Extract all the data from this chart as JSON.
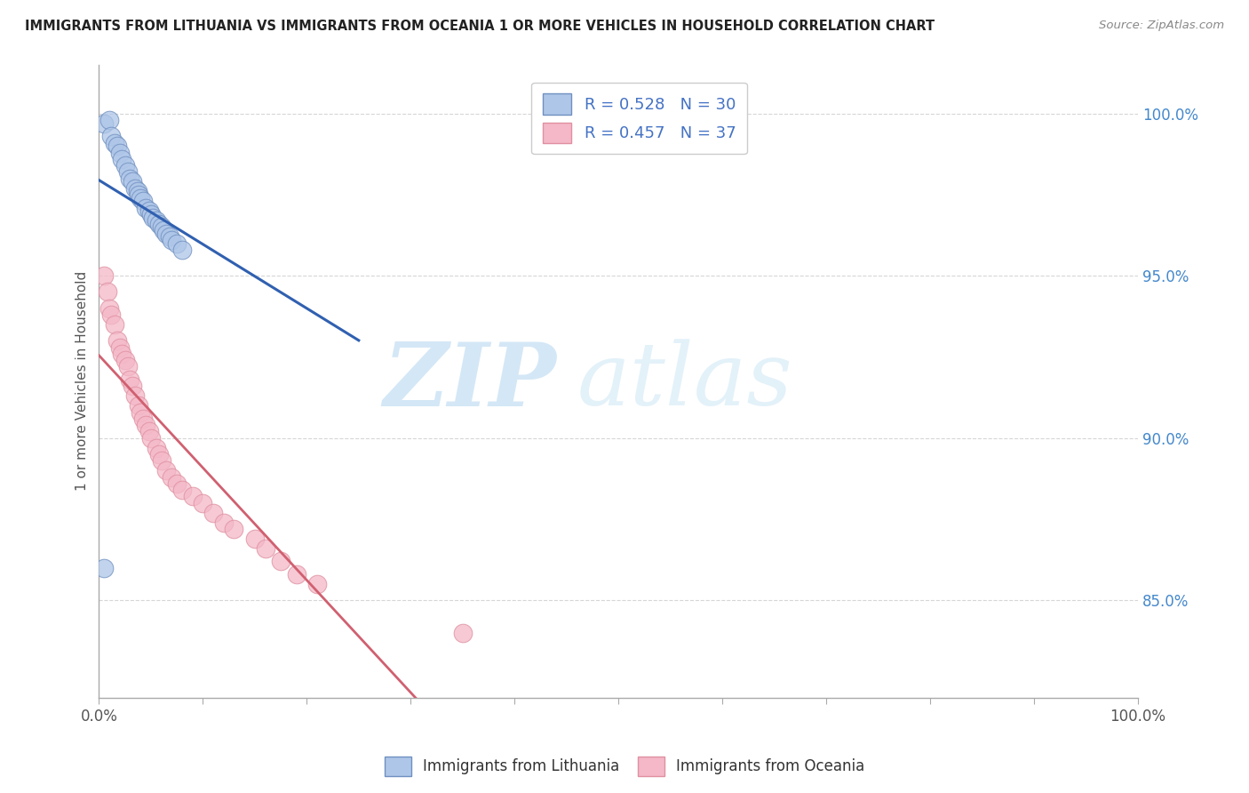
{
  "title": "IMMIGRANTS FROM LITHUANIA VS IMMIGRANTS FROM OCEANIA 1 OR MORE VEHICLES IN HOUSEHOLD CORRELATION CHART",
  "source": "Source: ZipAtlas.com",
  "ylabel": "1 or more Vehicles in Household",
  "xlim": [
    0.0,
    1.0
  ],
  "ylim": [
    0.82,
    1.015
  ],
  "yticks": [
    0.85,
    0.9,
    0.95,
    1.0
  ],
  "yticklabels": [
    "85.0%",
    "90.0%",
    "95.0%",
    "100.0%"
  ],
  "legend1_label": "R = 0.528   N = 30",
  "legend2_label": "R = 0.457   N = 37",
  "series1_color": "#aec6e8",
  "series2_color": "#f4b8c8",
  "line1_color": "#3060b0",
  "line2_color": "#d06070",
  "watermark_zip": "ZIP",
  "watermark_atlas": "atlas",
  "legend_label1": "Immigrants from Lithuania",
  "legend_label2": "Immigrants from Oceania",
  "lithuania_x": [
    0.005,
    0.01,
    0.012,
    0.015,
    0.018,
    0.02,
    0.022,
    0.025,
    0.028,
    0.03,
    0.032,
    0.035,
    0.037,
    0.038,
    0.04,
    0.042,
    0.045,
    0.048,
    0.05,
    0.052,
    0.055,
    0.058,
    0.06,
    0.062,
    0.065,
    0.068,
    0.07,
    0.075,
    0.08,
    0.005
  ],
  "lithuania_y": [
    0.997,
    0.998,
    0.993,
    0.991,
    0.99,
    0.988,
    0.986,
    0.984,
    0.982,
    0.98,
    0.979,
    0.977,
    0.976,
    0.975,
    0.974,
    0.973,
    0.971,
    0.97,
    0.969,
    0.968,
    0.967,
    0.966,
    0.965,
    0.964,
    0.963,
    0.962,
    0.961,
    0.96,
    0.958,
    0.86
  ],
  "oceania_x": [
    0.005,
    0.008,
    0.01,
    0.012,
    0.015,
    0.018,
    0.02,
    0.022,
    0.025,
    0.028,
    0.03,
    0.032,
    0.035,
    0.038,
    0.04,
    0.042,
    0.045,
    0.048,
    0.05,
    0.055,
    0.058,
    0.06,
    0.065,
    0.07,
    0.075,
    0.08,
    0.09,
    0.1,
    0.11,
    0.12,
    0.13,
    0.15,
    0.16,
    0.175,
    0.19,
    0.21,
    0.35
  ],
  "oceania_y": [
    0.95,
    0.945,
    0.94,
    0.938,
    0.935,
    0.93,
    0.928,
    0.926,
    0.924,
    0.922,
    0.918,
    0.916,
    0.913,
    0.91,
    0.908,
    0.906,
    0.904,
    0.902,
    0.9,
    0.897,
    0.895,
    0.893,
    0.89,
    0.888,
    0.886,
    0.884,
    0.882,
    0.88,
    0.877,
    0.874,
    0.872,
    0.869,
    0.866,
    0.862,
    0.858,
    0.855,
    0.84
  ]
}
